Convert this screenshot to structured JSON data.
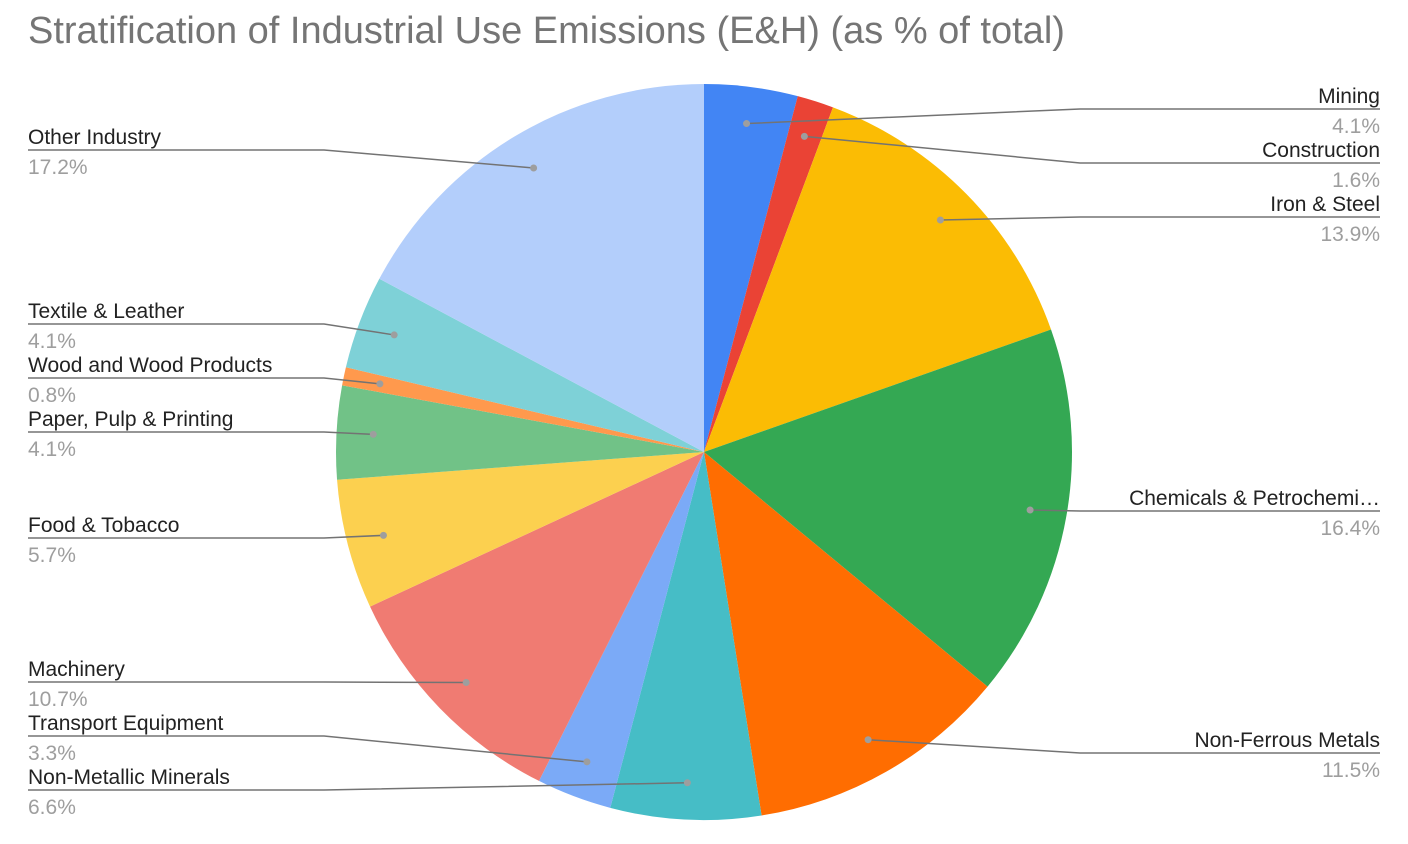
{
  "chart_data": {
    "type": "pie",
    "title": "Stratification of Industrial Use Emissions (E&H) (as % of total)",
    "slices": [
      {
        "label": "Mining",
        "display_label": "Mining",
        "value": 4.1,
        "value_label": "4.1%",
        "color": "#4285F4",
        "side": "right"
      },
      {
        "label": "Construction",
        "display_label": "Construction",
        "value": 1.6,
        "value_label": "1.6%",
        "color": "#EA4335",
        "side": "right"
      },
      {
        "label": "Iron & Steel",
        "display_label": "Iron & Steel",
        "value": 13.9,
        "value_label": "13.9%",
        "color": "#FBBC04",
        "side": "right"
      },
      {
        "label": "Chemicals & Petrochemicals",
        "display_label": "Chemicals & Petrochemi…",
        "value": 16.4,
        "value_label": "16.4%",
        "color": "#34A853",
        "side": "right"
      },
      {
        "label": "Non-Ferrous Metals",
        "display_label": "Non-Ferrous Metals",
        "value": 11.5,
        "value_label": "11.5%",
        "color": "#FF6D01",
        "side": "right"
      },
      {
        "label": "Non-Metallic Minerals",
        "display_label": "Non-Metallic Minerals",
        "value": 6.6,
        "value_label": "6.6%",
        "color": "#46BDC6",
        "side": "left"
      },
      {
        "label": "Transport Equipment",
        "display_label": "Transport Equipment",
        "value": 3.3,
        "value_label": "3.3%",
        "color": "#7BAAF7",
        "side": "left"
      },
      {
        "label": "Machinery",
        "display_label": "Machinery",
        "value": 10.7,
        "value_label": "10.7%",
        "color": "#F07B72",
        "side": "left"
      },
      {
        "label": "Food & Tobacco",
        "display_label": "Food & Tobacco",
        "value": 5.7,
        "value_label": "5.7%",
        "color": "#FCD04F",
        "side": "left"
      },
      {
        "label": "Paper, Pulp & Printing",
        "display_label": "Paper, Pulp & Printing",
        "value": 4.1,
        "value_label": "4.1%",
        "color": "#71C287",
        "side": "left"
      },
      {
        "label": "Wood and Wood Products",
        "display_label": "Wood and Wood Products",
        "value": 0.8,
        "value_label": "0.8%",
        "color": "#FF994D",
        "side": "left"
      },
      {
        "label": "Textile & Leather",
        "display_label": "Textile & Leather",
        "value": 4.1,
        "value_label": "4.1%",
        "color": "#7ED1D7",
        "side": "left"
      },
      {
        "label": "Other Industry",
        "display_label": "Other Industry",
        "value": 17.2,
        "value_label": "17.2%",
        "color": "#B3CEFB",
        "side": "left"
      }
    ],
    "legend": "none",
    "label_style": "callout lines with name and percentage"
  }
}
